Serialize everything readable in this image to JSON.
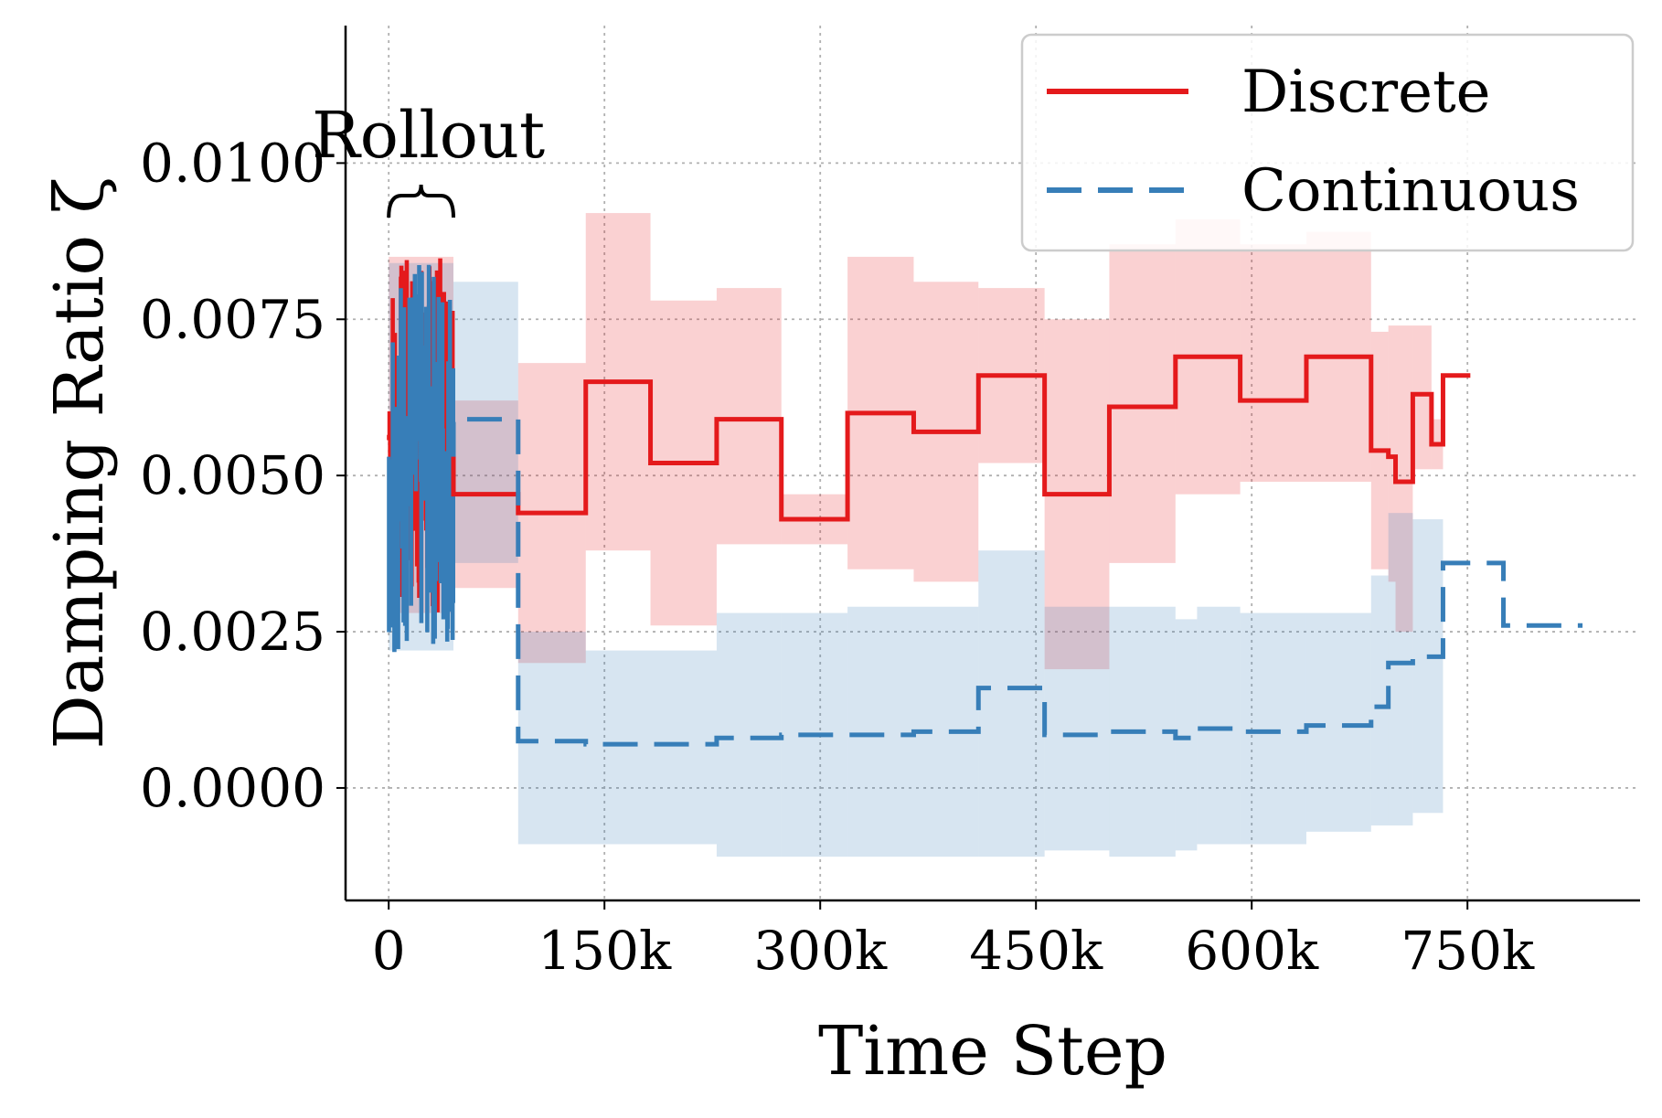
{
  "chart_data": {
    "type": "line",
    "xlabel": "Time Step",
    "ylabel": "Damping Ratio ζ",
    "xlim": [
      -30000,
      870000
    ],
    "ylim": [
      -0.0018,
      0.0122
    ],
    "xticks": [
      0,
      150000,
      300000,
      450000,
      600000,
      750000
    ],
    "xtick_labels": [
      "0",
      "150k",
      "300k",
      "450k",
      "600k",
      "750k"
    ],
    "yticks": [
      0.0,
      0.0025,
      0.005,
      0.0075,
      0.01
    ],
    "ytick_labels": [
      "0.0000",
      "0.0025",
      "0.0050",
      "0.0075",
      "0.0100"
    ],
    "grid": true,
    "legend_position": "top-right",
    "annotation": {
      "text": "Rollout",
      "brace_start": 0,
      "brace_end": 45000
    },
    "series": [
      {
        "name": "Discrete",
        "color": "#e41a1c",
        "style": "solid",
        "rollout_range": [
          0,
          45000
        ],
        "rollout_band": [
          0.0028,
          0.0085
        ],
        "steps": [
          {
            "x0": 45000,
            "x1": 90000,
            "y": 0.0047,
            "lo": 0.0032,
            "hi": 0.0062
          },
          {
            "x0": 90000,
            "x1": 137000,
            "y": 0.0044,
            "lo": 0.002,
            "hi": 0.0068
          },
          {
            "x0": 137000,
            "x1": 182000,
            "y": 0.0065,
            "lo": 0.0038,
            "hi": 0.0092
          },
          {
            "x0": 182000,
            "x1": 228000,
            "y": 0.0052,
            "lo": 0.0026,
            "hi": 0.0078
          },
          {
            "x0": 228000,
            "x1": 273000,
            "y": 0.0059,
            "lo": 0.0039,
            "hi": 0.008
          },
          {
            "x0": 273000,
            "x1": 319000,
            "y": 0.0043,
            "lo": 0.0039,
            "hi": 0.0047
          },
          {
            "x0": 319000,
            "x1": 365000,
            "y": 0.006,
            "lo": 0.0035,
            "hi": 0.0085
          },
          {
            "x0": 365000,
            "x1": 410000,
            "y": 0.0057,
            "lo": 0.0033,
            "hi": 0.0081
          },
          {
            "x0": 410000,
            "x1": 456000,
            "y": 0.0066,
            "lo": 0.0052,
            "hi": 0.008
          },
          {
            "x0": 456000,
            "x1": 501000,
            "y": 0.0047,
            "lo": 0.0019,
            "hi": 0.0075
          },
          {
            "x0": 501000,
            "x1": 547000,
            "y": 0.0061,
            "lo": 0.0036,
            "hi": 0.0087
          },
          {
            "x0": 547000,
            "x1": 592000,
            "y": 0.0069,
            "lo": 0.0047,
            "hi": 0.0091
          },
          {
            "x0": 592000,
            "x1": 638000,
            "y": 0.0062,
            "lo": 0.0049,
            "hi": 0.0087
          },
          {
            "x0": 638000,
            "x1": 683000,
            "y": 0.0069,
            "lo": 0.0049,
            "hi": 0.0089
          },
          {
            "x0": 683000,
            "x1": 695000,
            "y": 0.0054,
            "lo": 0.0035,
            "hi": 0.0073
          },
          {
            "x0": 695000,
            "x1": 700000,
            "y": 0.0053,
            "lo": 0.0033,
            "hi": 0.0074
          },
          {
            "x0": 700000,
            "x1": 712000,
            "y": 0.0049,
            "lo": 0.0025,
            "hi": 0.0074
          },
          {
            "x0": 712000,
            "x1": 725000,
            "y": 0.0063,
            "lo": 0.0051,
            "hi": 0.0074
          },
          {
            "x0": 725000,
            "x1": 733000,
            "y": 0.0055,
            "lo": 0.0051,
            "hi": 0.0059
          },
          {
            "x0": 733000,
            "x1": 752000,
            "y": 0.0066,
            "lo": 0.0066,
            "hi": 0.0066
          }
        ]
      },
      {
        "name": "Continuous",
        "color": "#377eb8",
        "style": "dashed",
        "rollout_range": [
          0,
          45000
        ],
        "rollout_band": [
          0.0022,
          0.0084
        ],
        "steps": [
          {
            "x0": 45000,
            "x1": 90000,
            "y": 0.0059,
            "lo": 0.0036,
            "hi": 0.0081
          },
          {
            "x0": 90000,
            "x1": 137000,
            "y": 0.00075,
            "lo": -0.0009,
            "hi": 0.0025
          },
          {
            "x0": 137000,
            "x1": 228000,
            "y": 0.0007,
            "lo": -0.0009,
            "hi": 0.0022
          },
          {
            "x0": 228000,
            "x1": 273000,
            "y": 0.0008,
            "lo": -0.0011,
            "hi": 0.0028
          },
          {
            "x0": 273000,
            "x1": 319000,
            "y": 0.00085,
            "lo": -0.0011,
            "hi": 0.0028
          },
          {
            "x0": 319000,
            "x1": 365000,
            "y": 0.00085,
            "lo": -0.0011,
            "hi": 0.0029
          },
          {
            "x0": 365000,
            "x1": 410000,
            "y": 0.0009,
            "lo": -0.0011,
            "hi": 0.0029
          },
          {
            "x0": 410000,
            "x1": 456000,
            "y": 0.0016,
            "lo": -0.0011,
            "hi": 0.0038
          },
          {
            "x0": 456000,
            "x1": 501000,
            "y": 0.00085,
            "lo": -0.001,
            "hi": 0.0029
          },
          {
            "x0": 501000,
            "x1": 547000,
            "y": 0.0009,
            "lo": -0.0011,
            "hi": 0.0029
          },
          {
            "x0": 547000,
            "x1": 562000,
            "y": 0.0008,
            "lo": -0.001,
            "hi": 0.0027
          },
          {
            "x0": 562000,
            "x1": 592000,
            "y": 0.00095,
            "lo": -0.0009,
            "hi": 0.0029
          },
          {
            "x0": 592000,
            "x1": 638000,
            "y": 0.0009,
            "lo": -0.0009,
            "hi": 0.0028
          },
          {
            "x0": 638000,
            "x1": 683000,
            "y": 0.001,
            "lo": -0.0007,
            "hi": 0.0028
          },
          {
            "x0": 683000,
            "x1": 695000,
            "y": 0.0013,
            "lo": -0.0006,
            "hi": 0.0034
          },
          {
            "x0": 695000,
            "x1": 712000,
            "y": 0.002,
            "lo": -0.0006,
            "hi": 0.0044
          },
          {
            "x0": 712000,
            "x1": 733000,
            "y": 0.0021,
            "lo": -0.0004,
            "hi": 0.0043
          },
          {
            "x0": 733000,
            "x1": 775000,
            "y": 0.0036,
            "lo": 0.0036,
            "hi": 0.0036
          },
          {
            "x0": 775000,
            "x1": 830000,
            "y": 0.0026,
            "lo": 0.0026,
            "hi": 0.0026
          }
        ]
      }
    ]
  }
}
